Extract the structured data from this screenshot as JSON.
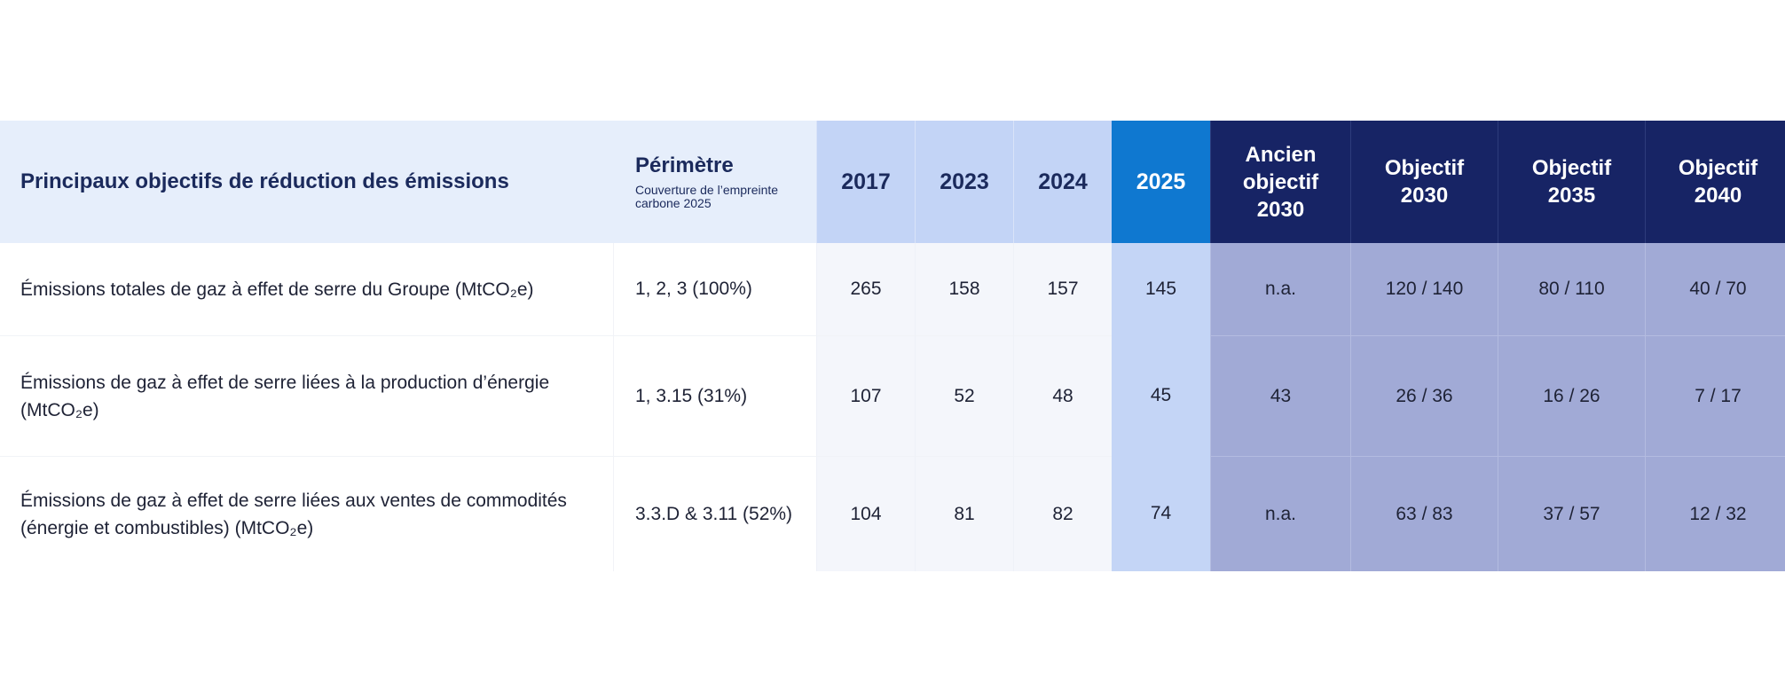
{
  "header": {
    "title": "Principaux objectifs de réduction des émissions",
    "perimetre": "Périmètre",
    "perimetre_sub": "Couverture de l’empreinte carbone 2025",
    "y2017": "2017",
    "y2023": "2023",
    "y2024": "2024",
    "y2025": "2025",
    "ancien_1": "Ancien",
    "ancien_2": "objectif",
    "ancien_3": "2030",
    "obj2030_1": "Objectif",
    "obj2030_2": "2030",
    "obj2035_1": "Objectif",
    "obj2035_2": "2035",
    "obj2040_1": "Objectif",
    "obj2040_2": "2040"
  },
  "rows": [
    {
      "label_1": "Émissions totales de gaz à effet de serre du Groupe (MtCO₂e)",
      "label_2": "",
      "perimetre": "1, 2, 3 (100%)",
      "y2017": "265",
      "y2023": "158",
      "y2024": "157",
      "y2025": "145",
      "ancien_2030": "n.a.",
      "obj_2030": "120 / 140",
      "obj_2035": "80 / 110",
      "obj_2040": "40 / 70"
    },
    {
      "label_1": "Émissions de gaz à effet de serre liées à la production d’énergie",
      "label_2": "(MtCO₂e)",
      "perimetre": "1, 3.15 (31%)",
      "y2017": "107",
      "y2023": "52",
      "y2024": "48",
      "y2025": "45",
      "ancien_2030": "43",
      "obj_2030": "26 / 36",
      "obj_2035": "16 / 26",
      "obj_2040": "7 / 17"
    },
    {
      "label_1": "Émissions de gaz à effet de serre liées aux ventes de commodités",
      "label_2": "(énergie et combustibles) (MtCO₂e)",
      "perimetre": "3.3.D & 3.11 (52%)",
      "y2017": "104",
      "y2023": "81",
      "y2024": "82",
      "y2025": "74",
      "ancien_2030": "n.a.",
      "obj_2030": "63 / 83",
      "obj_2035": "37 / 57",
      "obj_2040": "12 / 32"
    }
  ],
  "colors": {
    "header_light": "#e6eefb",
    "header_year": "#c3d4f6",
    "header_2025": "#0f78d0",
    "header_objectif": "#172465",
    "cell_year": "#f4f6fb",
    "cell_2025": "#c4d5f6",
    "cell_objectif": "#a1aad6"
  }
}
